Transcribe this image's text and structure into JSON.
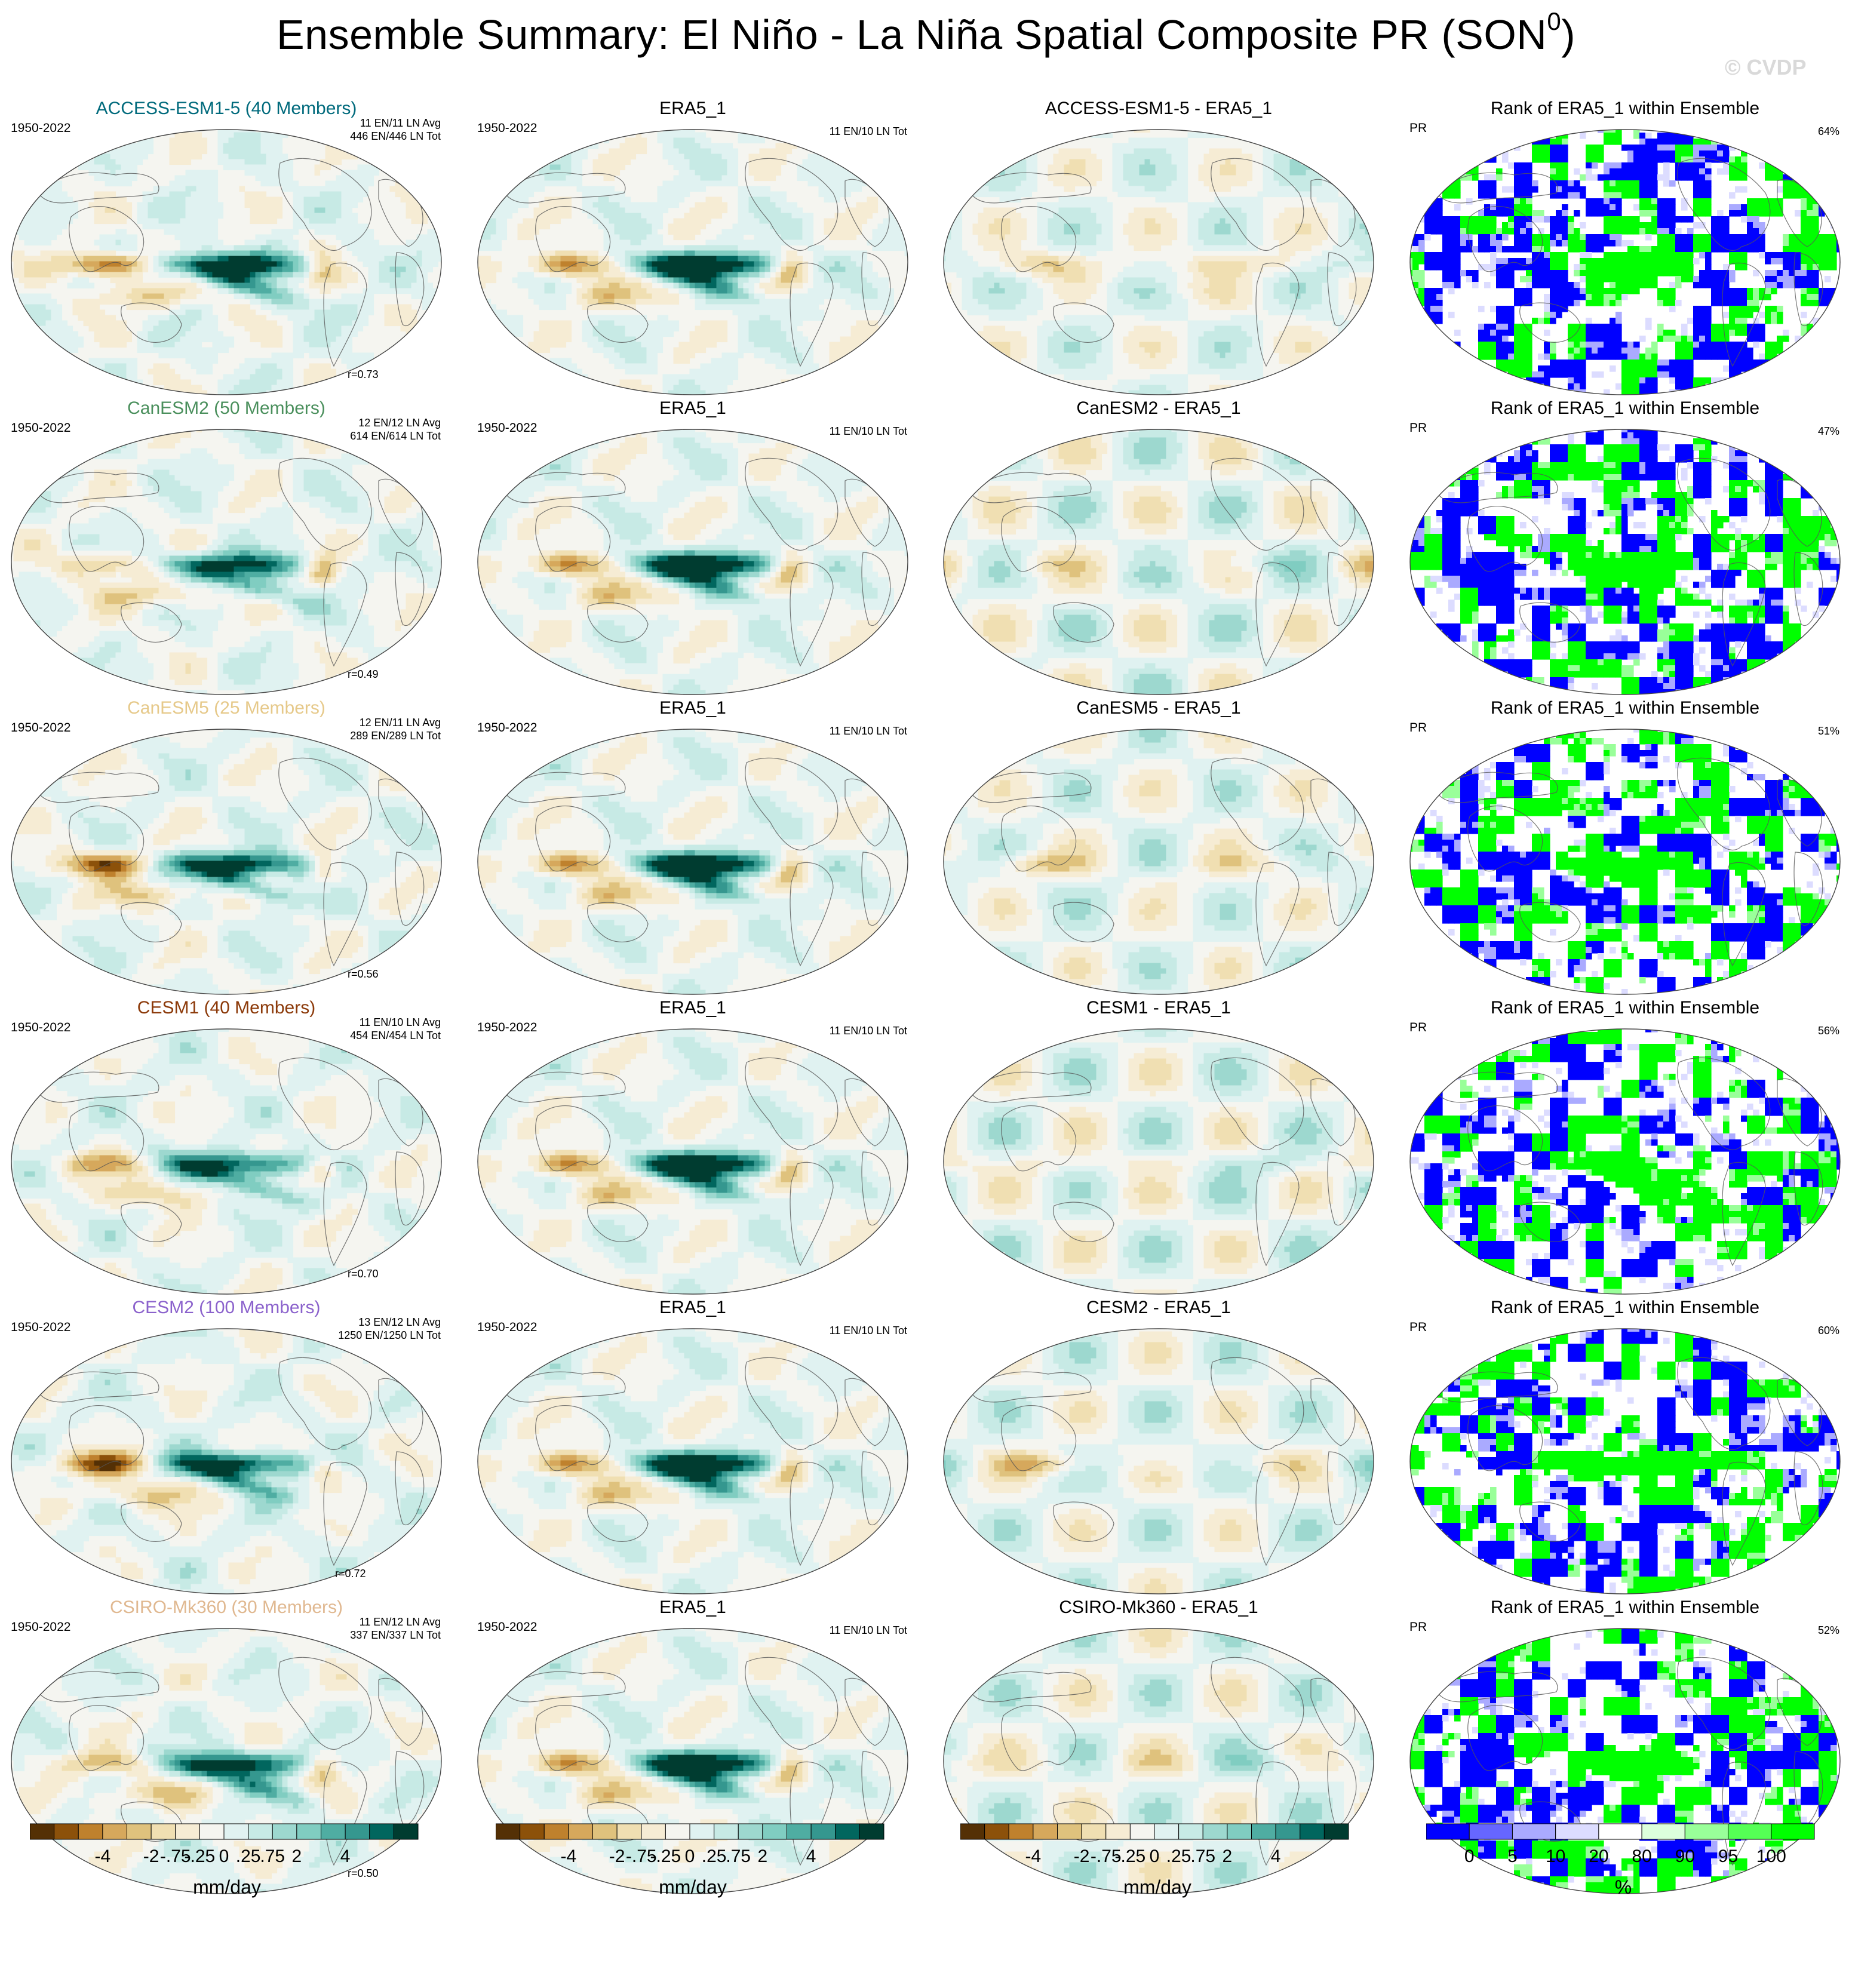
{
  "title": "Ensemble Summary: El Niño - La Niña Spatial Composite PR (SON",
  "title_sup": "0",
  "title_close": ")",
  "watermark": "© CVDP",
  "colors": {
    "brown_teal_scale": [
      "#543005",
      "#8c510a",
      "#bf812d",
      "#d6a85c",
      "#dfc27d",
      "#f0dfb2",
      "#f6ecd4",
      "#f5f5f0",
      "#e0f2f1",
      "#c7eae5",
      "#9dd8cf",
      "#80cdc1",
      "#4fada2",
      "#35978f",
      "#01665e",
      "#003c30"
    ],
    "rank_scale": [
      "#0000ff",
      "#6666ff",
      "#aaaaff",
      "#dcdcff",
      "#ffffff",
      "#dcffdc",
      "#99ff99",
      "#55ff55",
      "#00ff00"
    ],
    "model_title_colors": [
      "#006a7c",
      "#4a8f5c",
      "#e6c98a",
      "#8c3a0a",
      "#8b62cc",
      "#e0b890"
    ]
  },
  "rows": [
    {
      "model": "ACCESS-ESM1-5 (40 Members)",
      "years": "1950-2022",
      "counts1": "11 EN/11 LN Avg",
      "counts2": "446 EN/446 LN Tot",
      "r": "r=0.73",
      "obs": "ERA5_1",
      "obs_years": "1950-2022",
      "obs_counts": "11 EN/10 LN Tot",
      "diff": "ACCESS-ESM1-5 - ERA5_1",
      "rank_title": "Rank of ERA5_1 within Ensemble",
      "rank_var": "PR",
      "rank_pct": "64%"
    },
    {
      "model": "CanESM2 (50 Members)",
      "years": "1950-2022",
      "counts1": "12 EN/12 LN Avg",
      "counts2": "614 EN/614 LN Tot",
      "r": "r=0.49",
      "obs": "ERA5_1",
      "obs_years": "1950-2022",
      "obs_counts": "11 EN/10 LN Tot",
      "diff": "CanESM2 - ERA5_1",
      "rank_title": "Rank of ERA5_1 within Ensemble",
      "rank_var": "PR",
      "rank_pct": "47%"
    },
    {
      "model": "CanESM5 (25 Members)",
      "years": "1950-2022",
      "counts1": "12 EN/11 LN Avg",
      "counts2": "289 EN/289 LN Tot",
      "r": "r=0.56",
      "obs": "ERA5_1",
      "obs_years": "1950-2022",
      "obs_counts": "11 EN/10 LN Tot",
      "diff": "CanESM5 - ERA5_1",
      "rank_title": "Rank of ERA5_1 within Ensemble",
      "rank_var": "PR",
      "rank_pct": "51%"
    },
    {
      "model": "CESM1 (40 Members)",
      "years": "1950-2022",
      "counts1": "11 EN/10 LN Avg",
      "counts2": "454 EN/454 LN Tot",
      "r": "r=0.70",
      "obs": "ERA5_1",
      "obs_years": "1950-2022",
      "obs_counts": "11 EN/10 LN Tot",
      "diff": "CESM1 - ERA5_1",
      "rank_title": "Rank of ERA5_1 within Ensemble",
      "rank_var": "PR",
      "rank_pct": "56%"
    },
    {
      "model": "CESM2 (100 Members)",
      "years": "1950-2022",
      "counts1": "13 EN/12 LN Avg",
      "counts2": "1250 EN/1250 LN Tot",
      "r": "r=0.72",
      "obs": "ERA5_1",
      "obs_years": "1950-2022",
      "obs_counts": "11 EN/10 LN Tot",
      "diff": "CESM2 - ERA5_1",
      "rank_title": "Rank of ERA5_1 within Ensemble",
      "rank_var": "PR",
      "rank_pct": "60%"
    },
    {
      "model": "CSIRO-Mk360 (30 Members)",
      "years": "1950-2022",
      "counts1": "11 EN/12 LN Avg",
      "counts2": "337 EN/337 LN Tot",
      "r": "r=0.50",
      "obs": "ERA5_1",
      "obs_years": "1950-2022",
      "obs_counts": "11 EN/10 LN Tot",
      "diff": "CSIRO-Mk360 - ERA5_1",
      "rank_title": "Rank of ERA5_1 within Ensemble",
      "rank_var": "PR",
      "rank_pct": "52%"
    }
  ],
  "colorbars": {
    "precip_labels": [
      "-4",
      "-2",
      "-.75",
      "-.25",
      "0",
      ".25",
      ".75",
      "2",
      "4"
    ],
    "precip_unit": "mm/day",
    "rank_labels": [
      "0",
      "5",
      "10",
      "20",
      "80",
      "90",
      "95",
      "100"
    ],
    "rank_unit": "%"
  }
}
